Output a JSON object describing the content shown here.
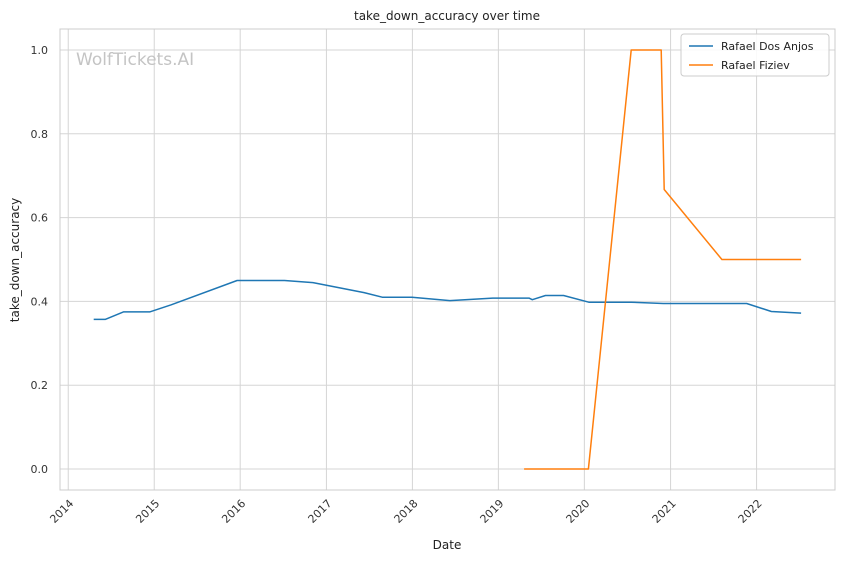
{
  "chart_data": {
    "type": "line",
    "title": "take_down_accuracy over time",
    "xlabel": "Date",
    "ylabel": "take_down_accuracy",
    "watermark": "WolfTickets.AI",
    "x_ticks": [
      "2014",
      "2015",
      "2016",
      "2017",
      "2018",
      "2019",
      "2020",
      "2021",
      "2022"
    ],
    "y_ticks": [
      "0.0",
      "0.2",
      "0.4",
      "0.6",
      "0.8",
      "1.0"
    ],
    "xlim": [
      "2013-11-27",
      "2022-11-30"
    ],
    "ylim": [
      -0.05,
      1.05
    ],
    "grid": true,
    "legend_position": "top-right",
    "series": [
      {
        "name": "Rafael Dos Anjos",
        "color": "#1f77b4",
        "points": [
          {
            "x": "2014-04-19",
            "y": 0.357
          },
          {
            "x": "2014-06-07",
            "y": 0.357
          },
          {
            "x": "2014-08-23",
            "y": 0.375
          },
          {
            "x": "2014-12-13",
            "y": 0.375
          },
          {
            "x": "2015-03-14",
            "y": 0.392
          },
          {
            "x": "2015-12-19",
            "y": 0.45
          },
          {
            "x": "2016-07-07",
            "y": 0.45
          },
          {
            "x": "2016-11-05",
            "y": 0.445
          },
          {
            "x": "2017-06-10",
            "y": 0.421
          },
          {
            "x": "2017-08-26",
            "y": 0.41
          },
          {
            "x": "2017-12-30",
            "y": 0.41
          },
          {
            "x": "2018-06-09",
            "y": 0.402
          },
          {
            "x": "2018-12-08",
            "y": 0.408
          },
          {
            "x": "2019-05-11",
            "y": 0.408
          },
          {
            "x": "2019-05-25",
            "y": 0.404
          },
          {
            "x": "2019-07-20",
            "y": 0.414
          },
          {
            "x": "2019-10-05",
            "y": 0.414
          },
          {
            "x": "2020-01-20",
            "y": 0.398
          },
          {
            "x": "2020-07-18",
            "y": 0.398
          },
          {
            "x": "2020-12-01",
            "y": 0.395
          },
          {
            "x": "2021-11-20",
            "y": 0.395
          },
          {
            "x": "2022-03-05",
            "y": 0.376
          },
          {
            "x": "2022-07-09",
            "y": 0.372
          }
        ]
      },
      {
        "name": "Rafael Fiziev",
        "color": "#ff7f0e",
        "points": [
          {
            "x": "2019-04-20",
            "y": 0.0
          },
          {
            "x": "2020-01-18",
            "y": 0.0
          },
          {
            "x": "2020-07-18",
            "y": 1.0
          },
          {
            "x": "2020-11-22",
            "y": 1.0
          },
          {
            "x": "2020-12-05",
            "y": 0.667
          },
          {
            "x": "2021-08-07",
            "y": 0.5
          },
          {
            "x": "2022-07-09",
            "y": 0.5
          }
        ]
      }
    ]
  }
}
